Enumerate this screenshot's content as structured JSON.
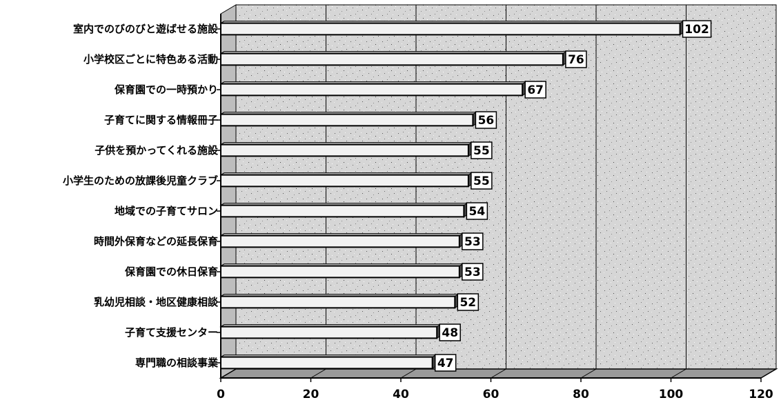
{
  "chart_data": {
    "type": "bar",
    "orientation": "horizontal",
    "categories": [
      "室内でのびのびと遊ばせる施設",
      "小学校区ごとに特色ある活動",
      "保育園での一時預かり",
      "子育てに関する情報冊子",
      "子供を預かってくれる施設",
      "小学生のための放課後児童クラブ",
      "地域での子育てサロン",
      "時間外保育などの延長保育",
      "保育園での休日保育",
      "乳幼児相談・地区健康相談",
      "子育て支援センター",
      "専門職の相談事業"
    ],
    "values": [
      102,
      76,
      67,
      56,
      55,
      55,
      54,
      53,
      53,
      52,
      48,
      47
    ],
    "xlim": [
      0,
      120
    ],
    "x_ticks": [
      "0",
      "20",
      "40",
      "60",
      "80",
      "100",
      "120"
    ],
    "grid": true,
    "data_labels": true,
    "three_d": true,
    "colors": {
      "bar_fill": "#f2f2f2",
      "bar_edge": "#000000",
      "plot_background": "#dcdcdc",
      "gridline": "#000000"
    }
  }
}
